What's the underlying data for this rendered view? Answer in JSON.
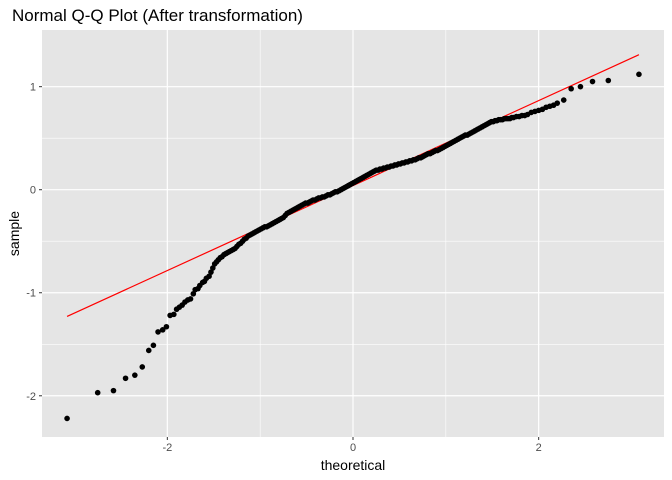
{
  "chart_data": {
    "type": "scatter",
    "title": "Normal Q-Q Plot (After transformation)",
    "xlabel": "theoretical",
    "ylabel": "sample",
    "xlim": [
      -3.35,
      3.35
    ],
    "ylim": [
      -2.4,
      1.55
    ],
    "x_ticks": [
      -2,
      0,
      2
    ],
    "x_tick_labels": [
      "-2",
      "0",
      "2"
    ],
    "y_ticks": [
      -2,
      -1,
      0,
      1
    ],
    "y_tick_labels": [
      "-2",
      "-1",
      "0",
      "1"
    ],
    "grid": true,
    "legend": "none",
    "colors": {
      "panel": "#e5e5e5",
      "grid": "#ffffff",
      "points": "#000000",
      "reference_line": "#ff0000"
    },
    "reference_line": {
      "x": [
        -3.08,
        3.08
      ],
      "y": [
        -1.23,
        1.31
      ]
    },
    "series": [
      {
        "points": [
          [
            -3.08,
            -2.22
          ],
          [
            -2.75,
            -1.97
          ],
          [
            -2.58,
            -1.95
          ],
          [
            -2.45,
            -1.83
          ],
          [
            -2.35,
            -1.8
          ],
          [
            -2.27,
            -1.72
          ],
          [
            -2.2,
            -1.56
          ],
          [
            -2.15,
            -1.51
          ],
          [
            -2.1,
            -1.38
          ],
          [
            -2.05,
            -1.36
          ],
          [
            -2.01,
            -1.33
          ],
          [
            -1.97,
            -1.22
          ],
          [
            -1.93,
            -1.21
          ],
          [
            -1.9,
            -1.16
          ],
          [
            -1.87,
            -1.14
          ],
          [
            -1.84,
            -1.12
          ],
          [
            -1.81,
            -1.09
          ],
          [
            -1.78,
            -1.07
          ],
          [
            -1.75,
            -1.06
          ],
          [
            -1.72,
            -1.01
          ],
          [
            -1.7,
            -0.97
          ],
          [
            -1.67,
            -0.96
          ],
          [
            -1.65,
            -0.93
          ],
          [
            -1.62,
            -0.9
          ],
          [
            -1.6,
            -0.89
          ],
          [
            -1.58,
            -0.86
          ],
          [
            -1.55,
            -0.84
          ],
          [
            -1.53,
            -0.8
          ],
          [
            -1.51,
            -0.76
          ],
          [
            -1.49,
            -0.72
          ],
          [
            -1.47,
            -0.7
          ],
          [
            -1.45,
            -0.68
          ],
          [
            -1.43,
            -0.66
          ],
          [
            -1.41,
            -0.65
          ],
          [
            -1.39,
            -0.63
          ],
          [
            -1.37,
            -0.62
          ],
          [
            -1.35,
            -0.61
          ],
          [
            -1.33,
            -0.6
          ],
          [
            -1.31,
            -0.59
          ],
          [
            -1.29,
            -0.58
          ],
          [
            -1.27,
            -0.57
          ],
          [
            -1.25,
            -0.55
          ],
          [
            -1.23,
            -0.53
          ],
          [
            -1.21,
            -0.52
          ],
          [
            -1.19,
            -0.5
          ],
          [
            -1.17,
            -0.48
          ],
          [
            -1.15,
            -0.47
          ],
          [
            -1.13,
            -0.45
          ],
          [
            -1.11,
            -0.44
          ],
          [
            -1.09,
            -0.43
          ],
          [
            -1.07,
            -0.42
          ],
          [
            -1.05,
            -0.41
          ],
          [
            -1.03,
            -0.4
          ],
          [
            -1.01,
            -0.39
          ],
          [
            -0.99,
            -0.38
          ],
          [
            -0.97,
            -0.37
          ],
          [
            -0.95,
            -0.36
          ],
          [
            -0.93,
            -0.36
          ],
          [
            -0.91,
            -0.35
          ],
          [
            -0.89,
            -0.34
          ],
          [
            -0.87,
            -0.33
          ],
          [
            -0.85,
            -0.32
          ],
          [
            -0.83,
            -0.31
          ],
          [
            -0.81,
            -0.3
          ],
          [
            -0.79,
            -0.29
          ],
          [
            -0.77,
            -0.28
          ],
          [
            -0.75,
            -0.27
          ],
          [
            -0.73,
            -0.25
          ],
          [
            -0.71,
            -0.23
          ],
          [
            -0.69,
            -0.22
          ],
          [
            -0.67,
            -0.21
          ],
          [
            -0.65,
            -0.2
          ],
          [
            -0.63,
            -0.19
          ],
          [
            -0.61,
            -0.18
          ],
          [
            -0.59,
            -0.17
          ],
          [
            -0.57,
            -0.16
          ],
          [
            -0.55,
            -0.15
          ],
          [
            -0.53,
            -0.14
          ],
          [
            -0.51,
            -0.13
          ],
          [
            -0.49,
            -0.13
          ],
          [
            -0.47,
            -0.12
          ],
          [
            -0.45,
            -0.11
          ],
          [
            -0.43,
            -0.1
          ],
          [
            -0.41,
            -0.1
          ],
          [
            -0.39,
            -0.09
          ],
          [
            -0.37,
            -0.08
          ],
          [
            -0.35,
            -0.08
          ],
          [
            -0.33,
            -0.07
          ],
          [
            -0.31,
            -0.07
          ],
          [
            -0.29,
            -0.06
          ],
          [
            -0.27,
            -0.05
          ],
          [
            -0.25,
            -0.05
          ],
          [
            -0.23,
            -0.04
          ],
          [
            -0.21,
            -0.03
          ],
          [
            -0.19,
            -0.02
          ],
          [
            -0.17,
            -0.02
          ],
          [
            -0.15,
            -0.01
          ],
          [
            -0.13,
            0.0
          ],
          [
            -0.11,
            0.01
          ],
          [
            -0.09,
            0.02
          ],
          [
            -0.07,
            0.03
          ],
          [
            -0.05,
            0.04
          ],
          [
            -0.03,
            0.05
          ],
          [
            -0.01,
            0.06
          ],
          [
            0.01,
            0.07
          ],
          [
            0.03,
            0.08
          ],
          [
            0.05,
            0.09
          ],
          [
            0.07,
            0.1
          ],
          [
            0.09,
            0.11
          ],
          [
            0.11,
            0.12
          ],
          [
            0.13,
            0.13
          ],
          [
            0.15,
            0.14
          ],
          [
            0.17,
            0.15
          ],
          [
            0.19,
            0.16
          ],
          [
            0.21,
            0.17
          ],
          [
            0.23,
            0.18
          ],
          [
            0.25,
            0.19
          ],
          [
            0.27,
            0.19
          ],
          [
            0.29,
            0.2
          ],
          [
            0.31,
            0.2
          ],
          [
            0.33,
            0.21
          ],
          [
            0.35,
            0.21
          ],
          [
            0.37,
            0.22
          ],
          [
            0.39,
            0.22
          ],
          [
            0.41,
            0.23
          ],
          [
            0.43,
            0.23
          ],
          [
            0.45,
            0.24
          ],
          [
            0.47,
            0.24
          ],
          [
            0.49,
            0.25
          ],
          [
            0.51,
            0.25
          ],
          [
            0.53,
            0.26
          ],
          [
            0.55,
            0.26
          ],
          [
            0.57,
            0.27
          ],
          [
            0.59,
            0.27
          ],
          [
            0.61,
            0.28
          ],
          [
            0.63,
            0.28
          ],
          [
            0.65,
            0.29
          ],
          [
            0.67,
            0.29
          ],
          [
            0.69,
            0.3
          ],
          [
            0.71,
            0.31
          ],
          [
            0.73,
            0.31
          ],
          [
            0.75,
            0.32
          ],
          [
            0.77,
            0.33
          ],
          [
            0.79,
            0.34
          ],
          [
            0.81,
            0.35
          ],
          [
            0.83,
            0.35
          ],
          [
            0.85,
            0.36
          ],
          [
            0.87,
            0.37
          ],
          [
            0.89,
            0.38
          ],
          [
            0.91,
            0.38
          ],
          [
            0.93,
            0.39
          ],
          [
            0.95,
            0.4
          ],
          [
            0.97,
            0.41
          ],
          [
            0.99,
            0.42
          ],
          [
            1.01,
            0.43
          ],
          [
            1.03,
            0.44
          ],
          [
            1.05,
            0.45
          ],
          [
            1.07,
            0.46
          ],
          [
            1.09,
            0.47
          ],
          [
            1.11,
            0.48
          ],
          [
            1.13,
            0.49
          ],
          [
            1.15,
            0.5
          ],
          [
            1.17,
            0.51
          ],
          [
            1.19,
            0.52
          ],
          [
            1.21,
            0.53
          ],
          [
            1.23,
            0.53
          ],
          [
            1.25,
            0.54
          ],
          [
            1.27,
            0.55
          ],
          [
            1.29,
            0.56
          ],
          [
            1.31,
            0.57
          ],
          [
            1.33,
            0.58
          ],
          [
            1.35,
            0.59
          ],
          [
            1.37,
            0.6
          ],
          [
            1.39,
            0.61
          ],
          [
            1.41,
            0.62
          ],
          [
            1.43,
            0.63
          ],
          [
            1.45,
            0.64
          ],
          [
            1.47,
            0.65
          ],
          [
            1.49,
            0.66
          ],
          [
            1.51,
            0.66
          ],
          [
            1.53,
            0.67
          ],
          [
            1.55,
            0.67
          ],
          [
            1.57,
            0.68
          ],
          [
            1.59,
            0.68
          ],
          [
            1.61,
            0.68
          ],
          [
            1.63,
            0.69
          ],
          [
            1.65,
            0.69
          ],
          [
            1.67,
            0.69
          ],
          [
            1.69,
            0.69
          ],
          [
            1.71,
            0.7
          ],
          [
            1.73,
            0.7
          ],
          [
            1.76,
            0.71
          ],
          [
            1.79,
            0.71
          ],
          [
            1.82,
            0.72
          ],
          [
            1.85,
            0.72
          ],
          [
            1.88,
            0.73
          ],
          [
            1.92,
            0.75
          ],
          [
            1.96,
            0.76
          ],
          [
            2.0,
            0.77
          ],
          [
            2.04,
            0.78
          ],
          [
            2.08,
            0.8
          ],
          [
            2.12,
            0.81
          ],
          [
            2.16,
            0.82
          ],
          [
            2.2,
            0.84
          ],
          [
            2.27,
            0.87
          ],
          [
            2.35,
            0.98
          ],
          [
            2.45,
            1.0
          ],
          [
            2.58,
            1.05
          ],
          [
            2.75,
            1.06
          ],
          [
            3.08,
            1.12
          ]
        ]
      }
    ]
  }
}
